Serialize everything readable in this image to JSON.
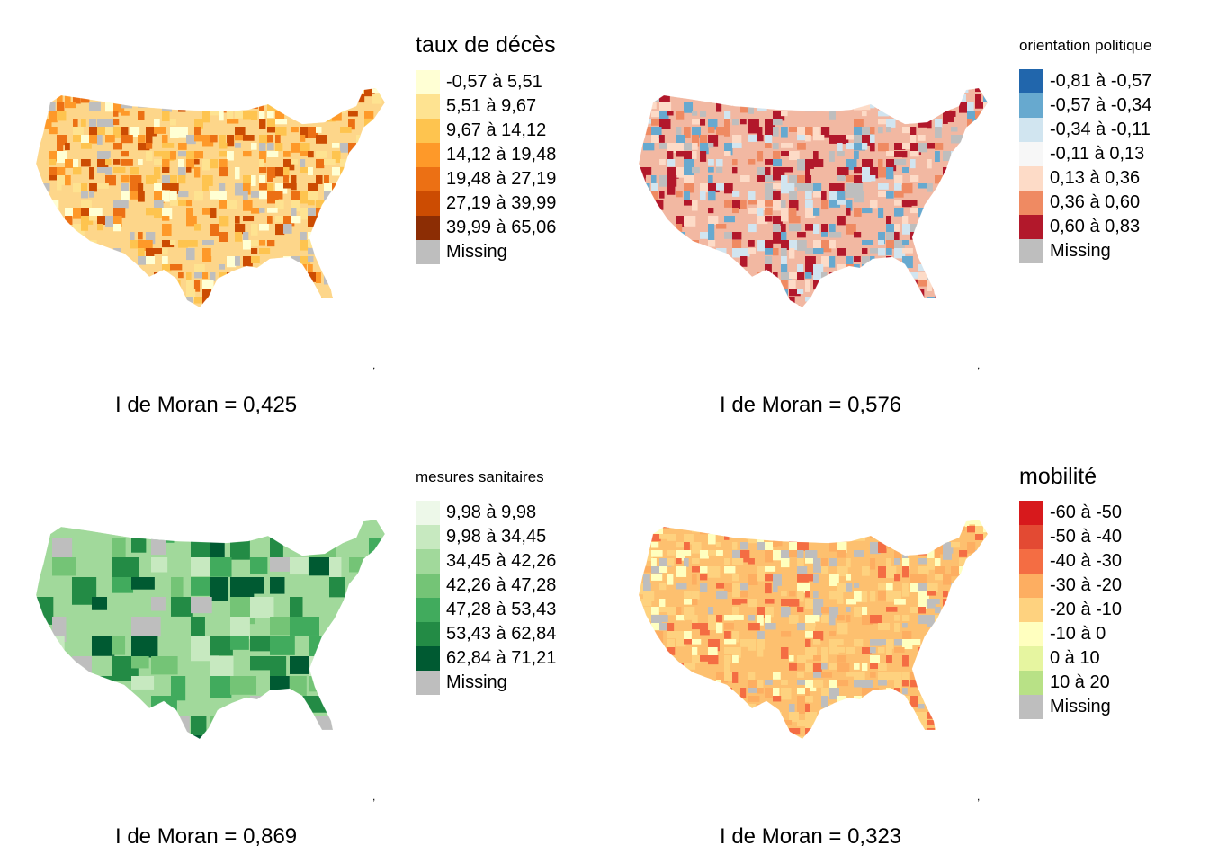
{
  "panels": [
    {
      "legend_title": "taux de décès",
      "title_size": "big",
      "legend": [
        {
          "label": "-0,57 à 5,51",
          "color": "#ffffd4"
        },
        {
          "label": "5,51 à 9,67",
          "color": "#fee391"
        },
        {
          "label": "9,67 à 14,12",
          "color": "#fec44f"
        },
        {
          "label": "14,12 à 19,48",
          "color": "#fe9929"
        },
        {
          "label": "19,48 à 27,19",
          "color": "#ec7014"
        },
        {
          "label": "27,19 à 39,99",
          "color": "#cc4c02"
        },
        {
          "label": "39,99 à 65,06",
          "color": "#8c2d04"
        },
        {
          "label": "Missing",
          "color": "#bebebe"
        }
      ],
      "caption": "I de Moran = 0,425",
      "map_base_color": "#fdd68a",
      "map_accent_colors": [
        "#ffffd4",
        "#fee391",
        "#fec44f",
        "#fe9929",
        "#ec7014",
        "#cc4c02",
        "#bebebe"
      ]
    },
    {
      "legend_title": "orientation politique",
      "title_size": "small",
      "legend": [
        {
          "label": "-0,81 à -0,57",
          "color": "#2166ac"
        },
        {
          "label": "-0,57 à -0,34",
          "color": "#67a9cf"
        },
        {
          "label": "-0,34 à -0,11",
          "color": "#d1e5f0"
        },
        {
          "label": "-0,11 à 0,13",
          "color": "#f7f7f7"
        },
        {
          "label": "0,13 à 0,36",
          "color": "#fddbc7"
        },
        {
          "label": "0,36 à 0,60",
          "color": "#ef8a62"
        },
        {
          "label": "0,60 à 0,83",
          "color": "#b2182b"
        },
        {
          "label": "Missing",
          "color": "#bebebe"
        }
      ],
      "caption": "I de Moran = 0,576",
      "map_base_color": "#f2b8a2",
      "map_accent_colors": [
        "#b2182b",
        "#ef8a62",
        "#fddbc7",
        "#d1e5f0",
        "#67a9cf",
        "#b2182b",
        "#bebebe"
      ]
    },
    {
      "legend_title": "mesures sanitaires",
      "title_size": "small",
      "legend": [
        {
          "label": "9,98 à 9,98",
          "color": "#edf8e9"
        },
        {
          "label": "9,98 à 34,45",
          "color": "#c7e9c0"
        },
        {
          "label": "34,45 à 42,26",
          "color": "#a1d99b"
        },
        {
          "label": "42,26 à 47,28",
          "color": "#74c476"
        },
        {
          "label": "47,28 à 53,43",
          "color": "#41ab5d"
        },
        {
          "label": "53,43 à 62,84",
          "color": "#238b45"
        },
        {
          "label": "62,84 à 71,21",
          "color": "#005a32"
        },
        {
          "label": "Missing",
          "color": "#bebebe"
        }
      ],
      "caption": "I de Moran = 0,869",
      "map_base_color": "#a1d99b",
      "map_accent_colors": [
        "#c7e9c0",
        "#74c476",
        "#41ab5d",
        "#238b45",
        "#005a32",
        "#bebebe"
      ]
    },
    {
      "legend_title": "mobilité",
      "title_size": "big",
      "legend": [
        {
          "label": "-60 à -50",
          "color": "#d7191c"
        },
        {
          "label": "-50 à -40",
          "color": "#e34a33"
        },
        {
          "label": "-40 à -30",
          "color": "#f46d43"
        },
        {
          "label": "-30 à -20",
          "color": "#fdae61"
        },
        {
          "label": "-20 à -10",
          "color": "#fed27f"
        },
        {
          "label": "-10 à 0",
          "color": "#ffffbf"
        },
        {
          "label": "0 à 10",
          "color": "#e6f5a0"
        },
        {
          "label": "10 à 20",
          "color": "#b8e186"
        },
        {
          "label": "Missing",
          "color": "#bebebe"
        }
      ],
      "caption": "I de Moran = 0,323",
      "map_base_color": "#fdc06f",
      "map_accent_colors": [
        "#fed27f",
        "#fdae61",
        "#f46d43",
        "#fed27f",
        "#ffffbf",
        "#bebebe"
      ]
    }
  ]
}
